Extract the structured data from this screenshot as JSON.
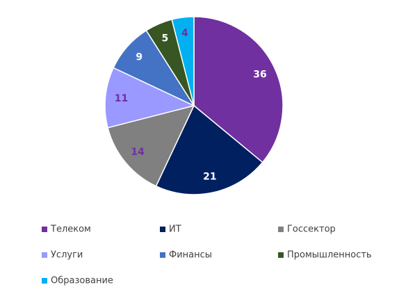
{
  "chart_data": {
    "type": "pie",
    "categories": [
      "Телеком",
      "ИТ",
      "Госсектор",
      "Услуги",
      "Финансы",
      "Промышленность",
      "Образование"
    ],
    "values": [
      36,
      21,
      14,
      11,
      9,
      5,
      4
    ],
    "colors": [
      "#7030a0",
      "#002060",
      "#808080",
      "#9999ff",
      "#4472c4",
      "#375623",
      "#00b0f0"
    ],
    "label_colors": [
      "#ffffff",
      "#ffffff",
      "#7030a0",
      "#7030a0",
      "#ffffff",
      "#ffffff",
      "#7030a0"
    ],
    "legend": "bottom"
  }
}
